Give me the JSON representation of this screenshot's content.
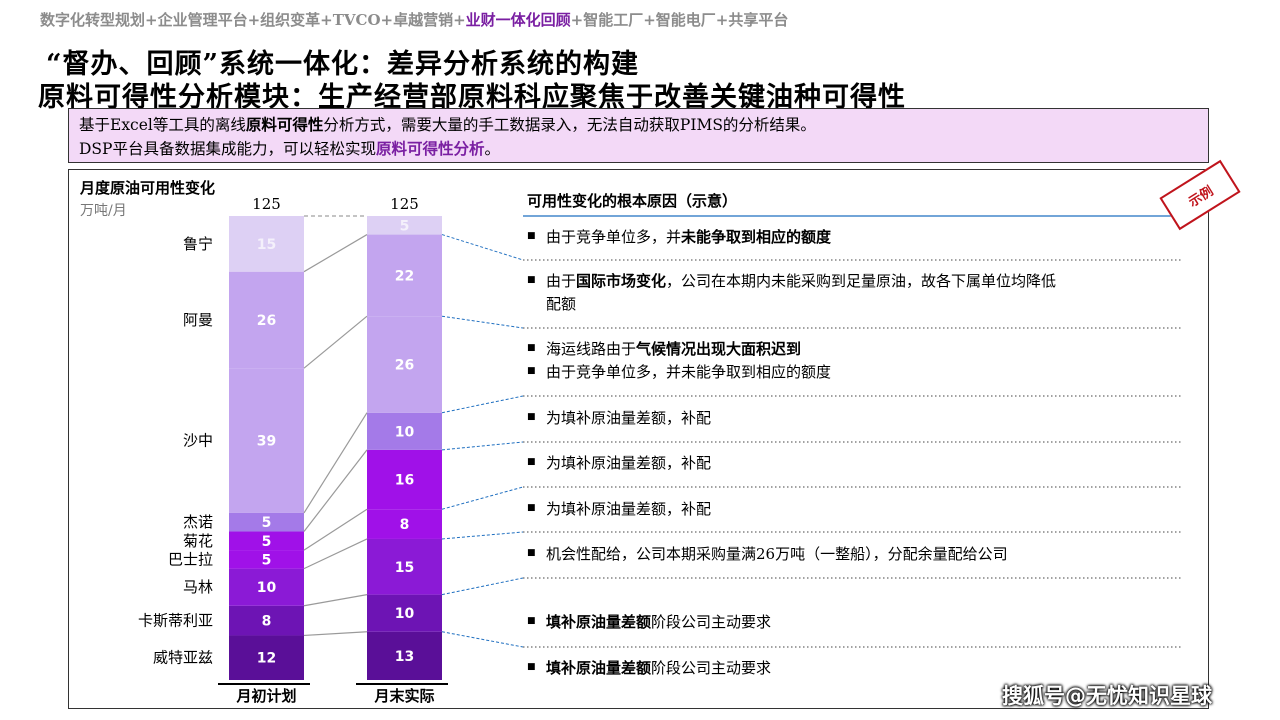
{
  "breadcrumb": {
    "pre": "数字化转型规划+企业管理平台+组织变革+TVCO+卓越营销+",
    "highlight": "业财一体化回顾",
    "post": "+智能工厂+智能电厂+共享平台"
  },
  "title_line1": "“督办、回顾”系统一体化：差异分析系统的构建",
  "title_line2": "原料可得性分析模块：生产经营部原料科应聚焦于改善关键油种可得性",
  "intro": {
    "l1_a": "基于Excel等工具的离线",
    "l1_b": "原料可得性",
    "l1_c": "分析方式，需要大量的手工数据录入，无法自动获取PIMS的分析结果。",
    "l2_a": "DSP平台具备数据集成能力，可以轻松实现",
    "l2_b": "原料可得性分析",
    "l2_c": "。"
  },
  "stamp": "示例",
  "watermark": "搜狐号@无忧知识星球",
  "chart_data": {
    "type": "bar",
    "stacked": true,
    "title": "月度原油可用性变化",
    "unit": "万吨/月",
    "ylim": [
      0,
      125
    ],
    "categories": [
      "月初计划",
      "月末实际"
    ],
    "totals": [
      125,
      125
    ],
    "left_segment_labels": [
      "威特亚兹",
      "卡斯蒂利亚",
      "马林",
      "巴士拉",
      "菊花",
      "杰诺",
      "沙中",
      "阿曼",
      "鲁宁"
    ],
    "colors": {
      "purple_light": "#ddd0f4",
      "purple_mid": "#c3a5ef",
      "purple_strong": "#a47ae8",
      "magenta": "#a011e8",
      "violet": "#8b1ad6",
      "violet_dark": "#6d14b4",
      "deep": "#5a0f98"
    },
    "plan_segments": [
      {
        "label": "威特亚兹",
        "value": 12,
        "color": "deep"
      },
      {
        "label": "卡斯蒂利亚",
        "value": 8,
        "color": "violet_dark"
      },
      {
        "label": "马林",
        "value": 10,
        "color": "violet"
      },
      {
        "label": "巴士拉",
        "value": 5,
        "color": "magenta"
      },
      {
        "label": "菊花",
        "value": 5,
        "color": "magenta"
      },
      {
        "label": "杰诺",
        "value": 5,
        "color": "purple_strong"
      },
      {
        "label": "沙中",
        "value": 39,
        "color": "purple_mid"
      },
      {
        "label": "阿曼",
        "value": 26,
        "color": "purple_mid"
      },
      {
        "label": "鲁宁",
        "value": 15,
        "color": "purple_light"
      }
    ],
    "actual_segments": [
      {
        "value": 13,
        "color": "deep"
      },
      {
        "value": 10,
        "color": "violet_dark"
      },
      {
        "value": 15,
        "color": "violet"
      },
      {
        "value": 8,
        "color": "magenta"
      },
      {
        "value": 16,
        "color": "magenta"
      },
      {
        "value": 10,
        "color": "purple_strong"
      },
      {
        "value": 26,
        "color": "purple_mid"
      },
      {
        "value": 22,
        "color": "purple_mid"
      },
      {
        "value": 5,
        "color": "purple_light"
      }
    ],
    "reasons_title": "可用性变化的根本原因（示意）",
    "reasons": [
      [
        {
          "parts": [
            {
              "t": "由于竞争单位多，并"
            },
            {
              "t": "未能争取到相应的额度",
              "b": true
            }
          ]
        }
      ],
      [
        {
          "parts": [
            {
              "t": "由于"
            },
            {
              "t": "国际市场变化",
              "b": true
            },
            {
              "t": "，公司在本期内未能采购到足量原油，故各下属单位均降低"
            }
          ],
          "cont": "配额"
        }
      ],
      [
        {
          "parts": [
            {
              "t": "海运线路由于"
            },
            {
              "t": "气候情况出现大面积迟到",
              "b": true
            }
          ]
        },
        {
          "parts": [
            {
              "t": "由于竞争单位多，并未能争取到相应的额度"
            }
          ]
        }
      ],
      [
        {
          "parts": [
            {
              "t": "为填补原油量差额，补配"
            }
          ]
        }
      ],
      [
        {
          "parts": [
            {
              "t": "为填补原油量差额，补配"
            }
          ]
        }
      ],
      [
        {
          "parts": [
            {
              "t": "为填补原油量差额，补配"
            }
          ]
        }
      ],
      [
        {
          "parts": [
            {
              "t": "机会性配给，公司本期采购量满26万吨（一整船），分配余量配给公司"
            }
          ]
        }
      ],
      [
        {
          "parts": [
            {
              "t": "填补原油量差额",
              "b": true
            },
            {
              "t": "阶段公司主动要求"
            }
          ]
        }
      ],
      [
        {
          "parts": [
            {
              "t": "填补原油量差额",
              "b": true
            },
            {
              "t": "阶段公司主动要求"
            }
          ]
        }
      ]
    ]
  }
}
